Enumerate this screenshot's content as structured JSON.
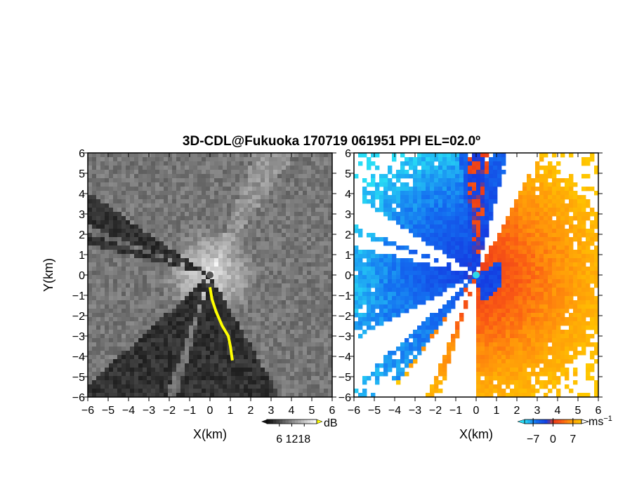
{
  "title": "3D-CDL@Fukuoka 170719 061951 PPI EL=02.0º",
  "chart_data": [
    {
      "type": "heatmap",
      "panel": "reflectivity",
      "xlabel": "X(km)",
      "ylabel": "Y(km)",
      "xlim": [
        -6,
        6
      ],
      "ylim": [
        -6,
        6
      ],
      "xticks": [
        "−6",
        "−5",
        "−4",
        "−3",
        "−2",
        "−1",
        "0",
        "1",
        "2",
        "3",
        "4",
        "5",
        "6"
      ],
      "yticks": [
        "6",
        "5",
        "4",
        "3",
        "2",
        "1",
        "0",
        "−1",
        "−2",
        "−3",
        "−4",
        "−5",
        "−6"
      ],
      "colorbar": {
        "unit": "dB",
        "tick_labels": [
          "6",
          "12",
          "18"
        ],
        "ticks": [
          6,
          12,
          18
        ],
        "range": [
          0,
          24
        ]
      },
      "colors": {
        "low": "#1f1f1f",
        "mid": "#777777",
        "high": "#f5f5f5",
        "highlight": "#ffff00",
        "center": "#555555"
      }
    },
    {
      "type": "heatmap",
      "panel": "doppler velocity",
      "xlabel": "X(km)",
      "xlim": [
        -6,
        6
      ],
      "ylim": [
        -6,
        6
      ],
      "xticks": [
        "−6",
        "−5",
        "−4",
        "−3",
        "−2",
        "−1",
        "0",
        "1",
        "2",
        "3",
        "4",
        "5",
        "6"
      ],
      "yticks": [
        "6",
        "5",
        "4",
        "3",
        "2",
        "1",
        "0",
        "−1",
        "−2",
        "−3",
        "−4",
        "−5",
        "−6"
      ],
      "colorbar": {
        "unit": "ms",
        "unit_sup": "−1",
        "tick_labels": [
          "−7",
          "0",
          "7"
        ],
        "ticks": [
          -7,
          0,
          7
        ],
        "range": [
          -10,
          10
        ]
      },
      "colors": {
        "neg_far": "#22ccf0",
        "neg": "#1a4fe6",
        "zero": "#f03818",
        "pos": "#ff6a10",
        "pos_far": "#ffc000",
        "center": "#30d8e8"
      }
    }
  ]
}
